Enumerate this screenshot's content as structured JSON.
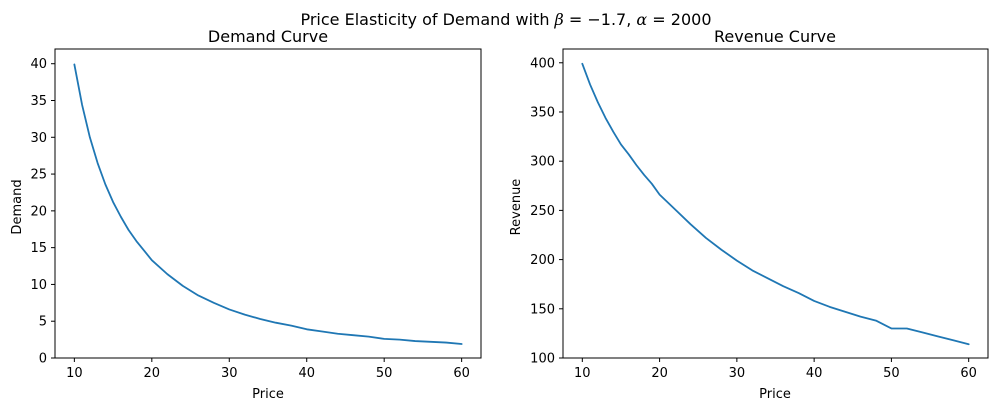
{
  "figure": {
    "suptitle": {
      "prefix": "Price Elasticity of Demand with ",
      "beta_symbol": "β",
      "beta_part": " = −1.7, ",
      "alpha_symbol": "α",
      "alpha_part": " = 2000"
    }
  },
  "colors": {
    "series": "#1f77b4",
    "axis": "#000000"
  },
  "chart_data": [
    {
      "type": "line",
      "title": "Demand Curve",
      "xlabel": "Price",
      "ylabel": "Demand",
      "xlim": [
        7.5,
        62.5
      ],
      "ylim": [
        0,
        42
      ],
      "xticks": [
        10,
        20,
        30,
        40,
        50,
        60
      ],
      "yticks": [
        0,
        5,
        10,
        15,
        20,
        25,
        30,
        35,
        40
      ],
      "grid": false,
      "series": [
        {
          "name": "",
          "x": [
            10,
            11,
            12,
            13,
            14,
            15,
            16,
            17,
            18,
            19,
            20,
            22,
            24,
            26,
            28,
            30,
            32,
            34,
            36,
            38,
            40,
            42,
            44,
            46,
            48,
            50,
            52,
            54,
            56,
            58,
            60
          ],
          "y": [
            39.9,
            34.4,
            30.0,
            26.5,
            23.6,
            21.2,
            19.2,
            17.4,
            15.9,
            14.6,
            13.3,
            11.4,
            9.8,
            8.5,
            7.5,
            6.6,
            5.9,
            5.3,
            4.8,
            4.4,
            3.9,
            3.6,
            3.3,
            3.1,
            2.9,
            2.6,
            2.5,
            2.3,
            2.2,
            2.1,
            1.9
          ]
        }
      ]
    },
    {
      "type": "line",
      "title": "Revenue Curve",
      "xlabel": "Price",
      "ylabel": "Revenue",
      "xlim": [
        7.5,
        62.5
      ],
      "ylim": [
        100,
        414
      ],
      "xticks": [
        10,
        20,
        30,
        40,
        50,
        60
      ],
      "yticks": [
        100,
        150,
        200,
        250,
        300,
        350,
        400
      ],
      "grid": false,
      "series": [
        {
          "name": "",
          "x": [
            10,
            11,
            12,
            13,
            14,
            15,
            16,
            17,
            18,
            19,
            20,
            22,
            24,
            26,
            28,
            30,
            32,
            34,
            36,
            38,
            40,
            42,
            44,
            46,
            48,
            50,
            52,
            54,
            56,
            58,
            60
          ],
          "y": [
            399,
            378,
            360,
            344,
            330,
            317,
            307,
            296,
            286,
            277,
            266,
            251,
            236,
            222,
            210,
            199,
            189,
            181,
            173,
            166,
            158,
            152,
            147,
            142,
            138,
            130,
            130,
            126,
            122,
            118,
            114
          ]
        }
      ]
    }
  ]
}
